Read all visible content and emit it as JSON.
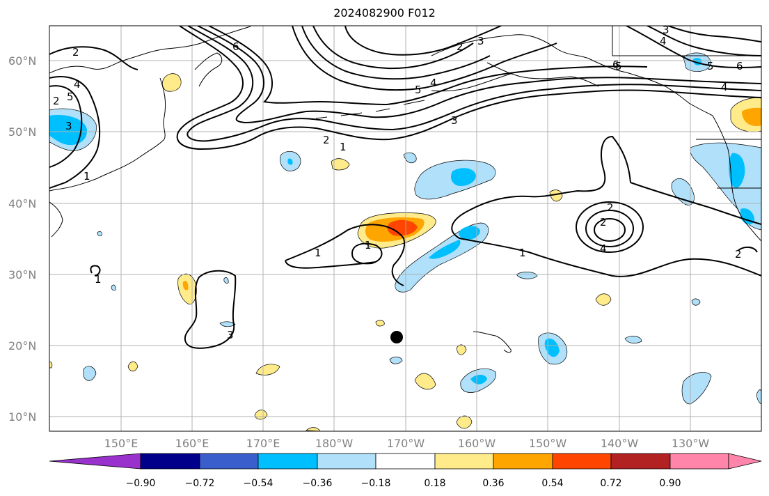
{
  "title": "2024082900 F012",
  "lat_labels": [
    "60°N",
    "50°N",
    "40°N",
    "30°N",
    "20°N",
    "10°N"
  ],
  "lon_labels": [
    "150°E",
    "160°E",
    "170°E",
    "180°W",
    "170°W",
    "160°W",
    "150°W",
    "140°W",
    "130°W"
  ],
  "colorbar": {
    "ticks": [
      "−0.90",
      "−0.72",
      "−0.54",
      "−0.36",
      "−0.18",
      "0.18",
      "0.36",
      "0.54",
      "0.72",
      "0.90"
    ],
    "colors": [
      "#9932cc",
      "#00008b",
      "#3a5fcd",
      "#00bfff",
      "#b0e0fa",
      "#ffffff",
      "#ffeb8a",
      "#ffa500",
      "#ff4500",
      "#b22222",
      "#ff85aa"
    ]
  },
  "contour_labels": [
    "2",
    "4",
    "5",
    "3",
    "6",
    "5",
    "4",
    "3",
    "2",
    "1",
    "2",
    "3",
    "4",
    "5",
    "6",
    "5",
    "6",
    "4",
    "3",
    "2",
    "1",
    "2",
    "1",
    "1",
    "2",
    "4",
    "3",
    "1",
    "1",
    "2"
  ],
  "marker": "storm-center-dot"
}
